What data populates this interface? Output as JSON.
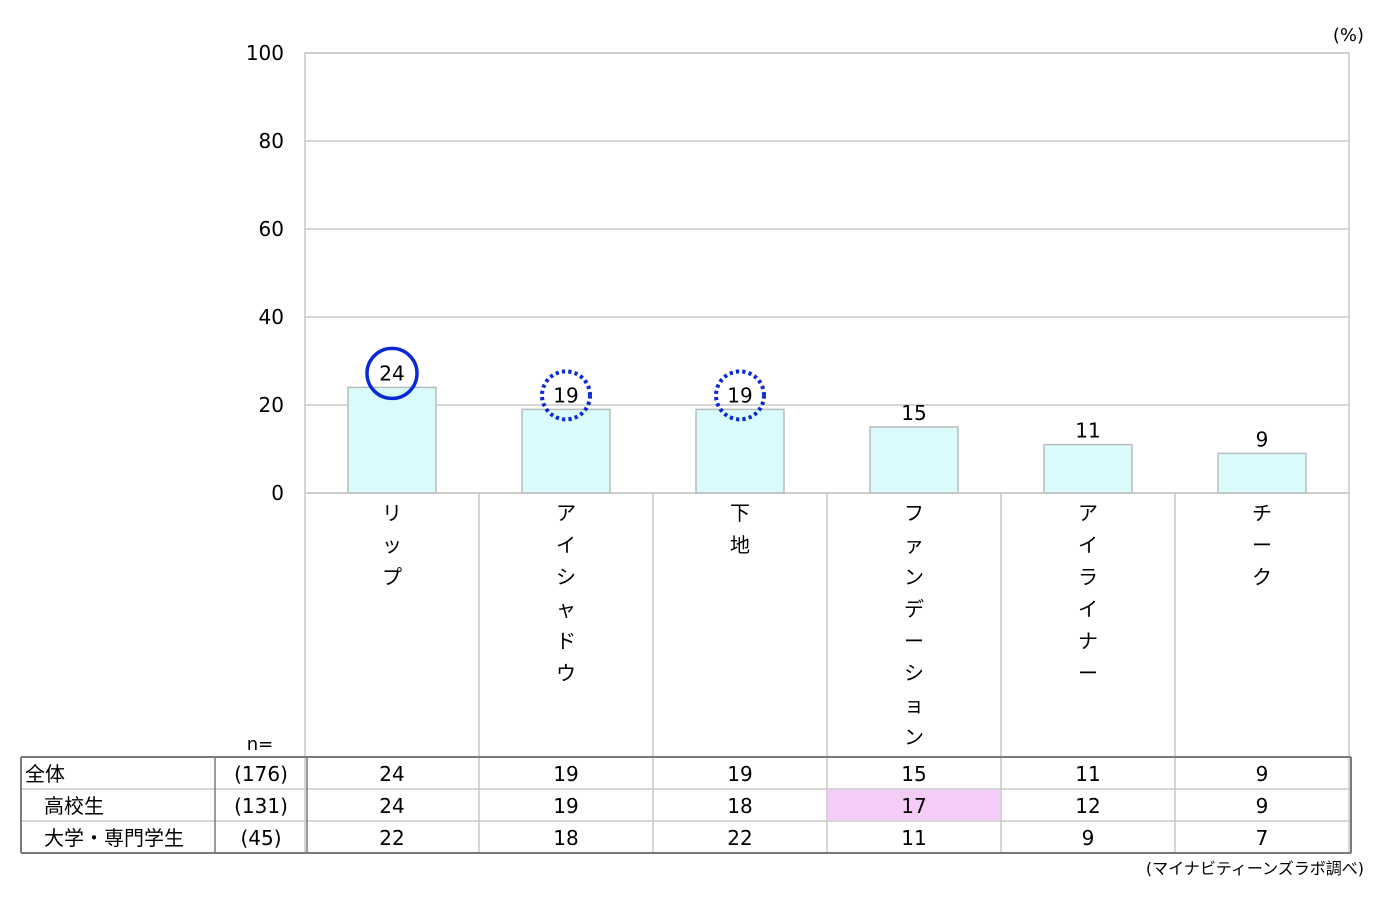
{
  "chart_data": {
    "type": "bar",
    "unit": "(%)",
    "categories": [
      "リップ",
      "アイシャドウ",
      "下地",
      "ファンデーション",
      "アイライナー",
      "チーク"
    ],
    "values": [
      24,
      19,
      19,
      15,
      11,
      9
    ],
    "value_labels": [
      "24",
      "19",
      "19",
      "15",
      "11",
      "9"
    ],
    "ylim": [
      0,
      100
    ],
    "yticks": [
      0,
      20,
      40,
      60,
      80,
      100
    ],
    "grid": true,
    "bar_color": "#d9fbfb",
    "highlight_solid_index": 0,
    "highlight_dotted_indices": [
      1,
      2
    ],
    "highlight_color": "#0a28d8"
  },
  "table": {
    "n_label": "n=",
    "rows": [
      {
        "label": "全体",
        "n": "(176)",
        "values": [
          "24",
          "19",
          "19",
          "15",
          "11",
          "9"
        ]
      },
      {
        "label": "高校生",
        "n": "(131)",
        "values": [
          "24",
          "19",
          "18",
          "17",
          "12",
          "9"
        ]
      },
      {
        "label": "大学・専門学生",
        "n": "(45)",
        "values": [
          "22",
          "18",
          "22",
          "11",
          "9",
          "7"
        ]
      }
    ],
    "highlight_cell": {
      "row": 1,
      "col": 3,
      "color": "#f5ccf8"
    }
  },
  "source": "(マイナビティーンズラボ調べ)"
}
